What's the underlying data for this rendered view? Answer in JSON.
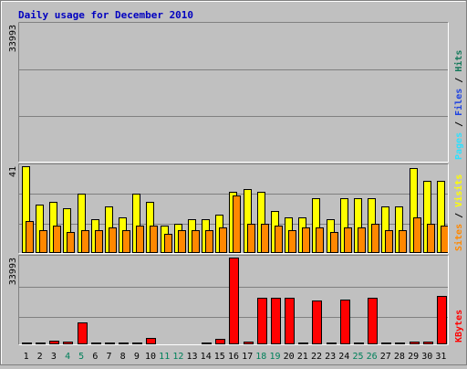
{
  "chart_data": [
    {
      "type": "bar",
      "title": "Daily usage for December 2010",
      "categories": [
        "1",
        "2",
        "3",
        "4",
        "5",
        "6",
        "7",
        "8",
        "9",
        "10",
        "11",
        "12",
        "13",
        "14",
        "15",
        "16",
        "17",
        "18",
        "19",
        "20",
        "21",
        "22",
        "23",
        "24",
        "25",
        "26",
        "27",
        "28",
        "29",
        "30",
        "31"
      ],
      "weekend_days": [
        "4",
        "5",
        "11",
        "12",
        "18",
        "19",
        "25",
        "26"
      ],
      "ymax_label": "33993",
      "ymax": 33993,
      "series": [
        {
          "name": "Hits",
          "color": "#157a5b",
          "values": [
            70,
            52,
            152,
            40,
            150,
            95,
            93,
            103,
            98,
            166,
            42,
            34,
            64,
            88,
            104,
            48,
            48,
            48,
            58,
            98,
            80,
            36,
            31,
            46,
            43,
            98,
            60,
            51,
            94,
            120,
            94
          ]
        },
        {
          "name": "Files",
          "color": "#1f43e0",
          "values": [
            58,
            44,
            121,
            31,
            135,
            81,
            85,
            88,
            83,
            143,
            30,
            24,
            47,
            67,
            82,
            39,
            38,
            40,
            44,
            81,
            70,
            29,
            23,
            38,
            35,
            82,
            48,
            41,
            80,
            101,
            85
          ]
        },
        {
          "name": "Pages",
          "color": "#2de0ff",
          "values": [
            47,
            35,
            68,
            24,
            110,
            63,
            67,
            70,
            67,
            86,
            23,
            15,
            31,
            43,
            52,
            32,
            30,
            32,
            34,
            42,
            45,
            24,
            18,
            31,
            29,
            54,
            39,
            29,
            70,
            84,
            64
          ]
        }
      ]
    },
    {
      "type": "bar",
      "categories": [
        "1",
        "2",
        "3",
        "4",
        "5",
        "6",
        "7",
        "8",
        "9",
        "10",
        "11",
        "12",
        "13",
        "14",
        "15",
        "16",
        "17",
        "18",
        "19",
        "20",
        "21",
        "22",
        "23",
        "24",
        "25",
        "26",
        "27",
        "28",
        "29",
        "30",
        "31"
      ],
      "ymax_label": "41",
      "ymax": 41,
      "series": [
        {
          "name": "Visits",
          "color": "#ffff00",
          "values": [
            41,
            23,
            24,
            21,
            28,
            16,
            22,
            17,
            28,
            24,
            13,
            14,
            16,
            16,
            18,
            29,
            30,
            29,
            20,
            17,
            17,
            26,
            16,
            26,
            26,
            26,
            22,
            22,
            40,
            34,
            34
          ]
        },
        {
          "name": "Sites",
          "color": "#ff8800",
          "values": [
            15,
            11,
            13,
            10,
            11,
            11,
            12,
            11,
            13,
            13,
            9,
            11,
            11,
            11,
            12,
            27,
            14,
            14,
            13,
            11,
            12,
            12,
            10,
            12,
            12,
            14,
            11,
            11,
            17,
            14,
            13
          ]
        }
      ]
    },
    {
      "type": "bar",
      "categories": [
        "1",
        "2",
        "3",
        "4",
        "5",
        "6",
        "7",
        "8",
        "9",
        "10",
        "11",
        "12",
        "13",
        "14",
        "15",
        "16",
        "17",
        "18",
        "19",
        "20",
        "21",
        "22",
        "23",
        "24",
        "25",
        "26",
        "27",
        "28",
        "29",
        "30",
        "31"
      ],
      "ymax_label": "33993",
      "ymax": 33993,
      "series": [
        {
          "name": "KBytes",
          "color": "#ff0000",
          "values": [
            800,
            800,
            1500,
            1000,
            8700,
            700,
            700,
            700,
            600,
            2600,
            300,
            400,
            500,
            600,
            2000,
            33993,
            1000,
            18300,
            18300,
            18300,
            700,
            17200,
            700,
            17600,
            700,
            18400,
            700,
            800,
            1100,
            1100,
            19000
          ]
        }
      ]
    }
  ]
}
